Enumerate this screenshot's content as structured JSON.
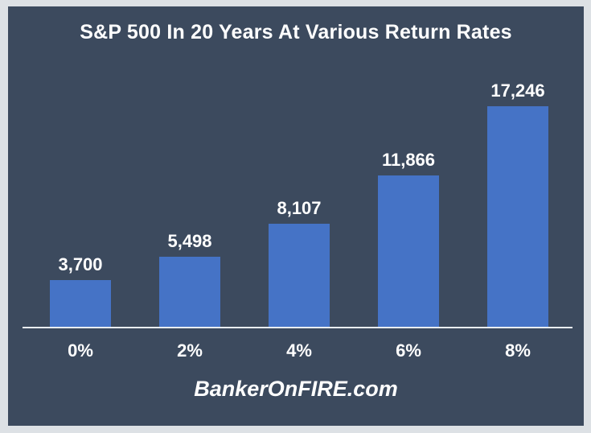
{
  "chart_data": {
    "type": "bar",
    "title": "S&P 500 In 20 Years At Various Return Rates",
    "categories": [
      "0%",
      "2%",
      "4%",
      "6%",
      "8%"
    ],
    "values": [
      3700,
      5498,
      8107,
      11866,
      17246
    ],
    "value_labels": [
      "3,700",
      "5,498",
      "8,107",
      "11,866",
      "17,246"
    ],
    "xlabel": "",
    "ylabel": "",
    "ylim": [
      0,
      17246
    ],
    "grid": false,
    "legend": "none",
    "colors": {
      "background": "#3c4a5e",
      "frame_border": "#dde1e5",
      "bar": "#4573c6",
      "axis_line": "#e9edf1",
      "text": "#ffffff"
    }
  },
  "footer": {
    "watermark": "BankerOnFIRE.com"
  }
}
